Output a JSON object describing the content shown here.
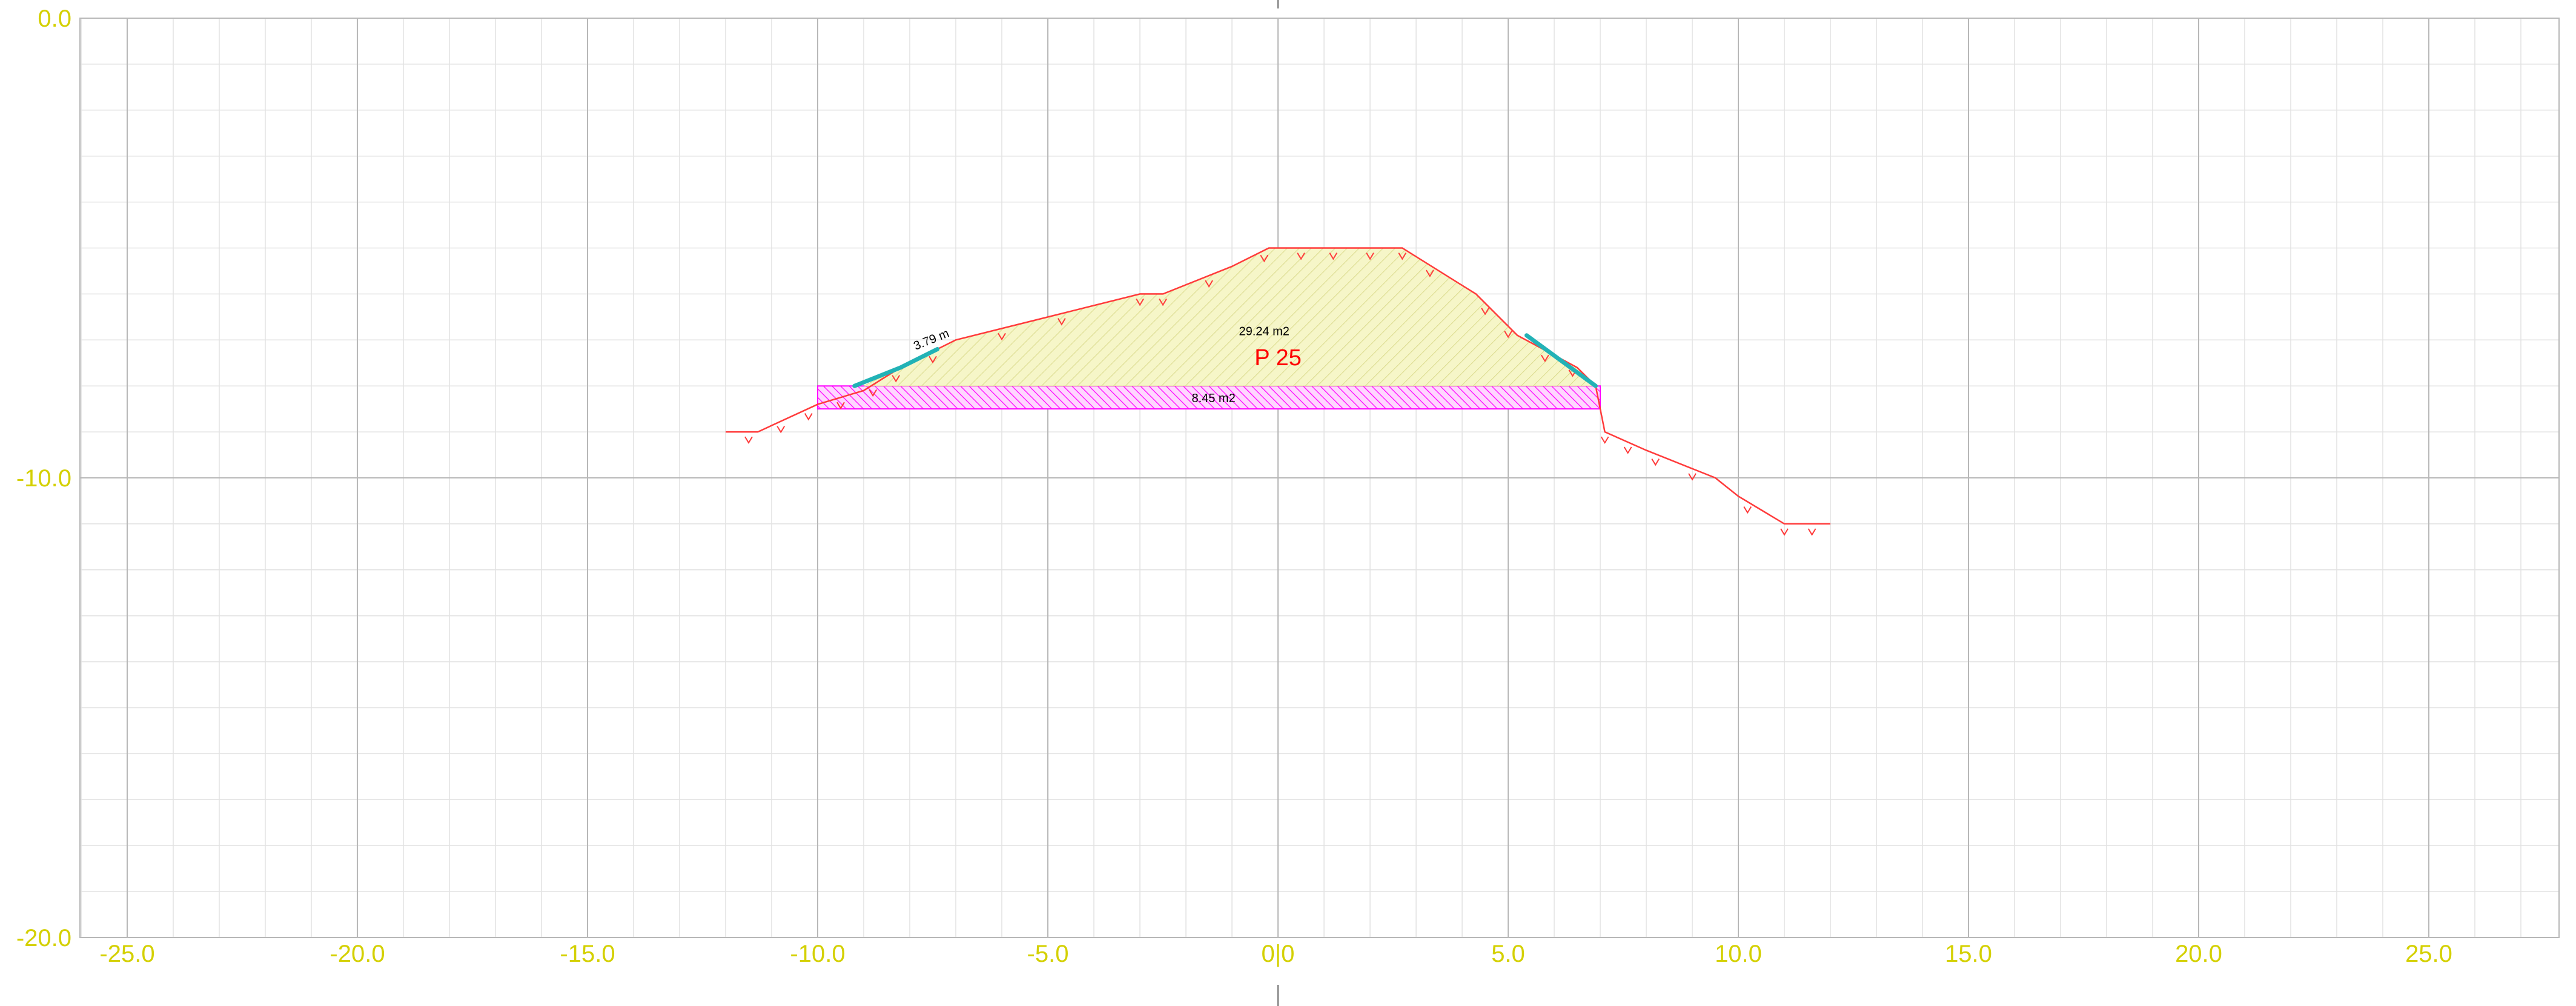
{
  "colors": {
    "background": "#ffffff",
    "grid_minor": "#e2e2e2",
    "grid_major": "#b8b8b8",
    "axis_labels": "#d4d000",
    "terrain_line": "#ff3b3b",
    "fill_area": "#f6f6c8",
    "fill_hatch": "#d9d98a",
    "cut_area": "#ff00ff",
    "slope_highlight": "#22b2b6",
    "profile_label": "#ff0000",
    "annotation_text": "#000000"
  },
  "chart_data": {
    "type": "cross-section",
    "x_axis": {
      "range": [
        -26.0,
        28.0
      ],
      "ticks": [
        -25.0,
        -20.0,
        -15.0,
        -10.0,
        -5.0,
        0.0,
        5.0,
        10.0,
        15.0,
        20.0,
        25.0
      ],
      "tick_labels": [
        "-25.0",
        "-20.0",
        "-15.0",
        "-10.0",
        "-5.0",
        "0|0",
        "5.0",
        "10.0",
        "15.0",
        "20.0",
        "25.0"
      ],
      "minor_step": 1.0
    },
    "y_axis": {
      "range": [
        -20.0,
        0.0
      ],
      "ticks": [
        0.0,
        -10.0,
        -20.0
      ],
      "tick_labels": [
        "0.0",
        "-10.0",
        "-20.0"
      ],
      "minor_step": 1.0
    },
    "grid": true,
    "terrain_profile": [
      [
        -12.0,
        -9.0
      ],
      [
        -11.3,
        -9.0
      ],
      [
        -10.0,
        -8.4
      ],
      [
        -9.0,
        -8.1
      ],
      [
        -8.2,
        -7.6
      ],
      [
        -7.0,
        -7.0
      ],
      [
        -5.0,
        -6.5
      ],
      [
        -3.0,
        -6.0
      ],
      [
        -2.5,
        -6.0
      ],
      [
        -1.0,
        -5.4
      ],
      [
        -0.2,
        -5.0
      ],
      [
        2.7,
        -5.0
      ],
      [
        4.3,
        -6.0
      ],
      [
        5.2,
        -6.9
      ],
      [
        6.5,
        -7.6
      ],
      [
        6.9,
        -8.0
      ],
      [
        7.1,
        -9.0
      ],
      [
        8.0,
        -9.4
      ],
      [
        9.5,
        -10.0
      ],
      [
        10.0,
        -10.4
      ],
      [
        11.0,
        -11.0
      ],
      [
        12.0,
        -11.0
      ]
    ],
    "fill_polygon": [
      [
        -9.0,
        -8.0
      ],
      [
        -8.2,
        -7.6
      ],
      [
        -7.0,
        -7.0
      ],
      [
        -5.0,
        -6.5
      ],
      [
        -3.0,
        -6.0
      ],
      [
        -2.5,
        -6.0
      ],
      [
        -1.0,
        -5.4
      ],
      [
        -0.2,
        -5.0
      ],
      [
        2.7,
        -5.0
      ],
      [
        4.3,
        -6.0
      ],
      [
        5.2,
        -6.9
      ],
      [
        6.5,
        -7.6
      ],
      [
        6.9,
        -8.0
      ]
    ],
    "cut_polygon": [
      [
        -10.0,
        -8.0
      ],
      [
        7.0,
        -8.0
      ],
      [
        7.0,
        -8.5
      ],
      [
        -10.0,
        -8.5
      ]
    ],
    "slope_highlights": [
      [
        [
          -9.2,
          -8.0
        ],
        [
          -8.2,
          -7.6
        ],
        [
          -7.4,
          -7.2
        ]
      ],
      [
        [
          5.4,
          -6.9
        ],
        [
          6.9,
          -8.0
        ]
      ]
    ],
    "tick_marks_x": [
      -11.5,
      -10.8,
      -10.2,
      -9.5,
      -8.8,
      -8.3,
      -7.5,
      -6.0,
      -4.7,
      -3.0,
      -2.5,
      -1.5,
      -0.3,
      0.5,
      1.2,
      2.0,
      2.7,
      3.3,
      4.5,
      5.0,
      5.8,
      6.4,
      7.1,
      7.6,
      8.2,
      9.0,
      10.2,
      11.0,
      11.6
    ],
    "annotations": {
      "profile_label": "P 25",
      "fill_area_label": "29.24 m2",
      "cut_area_label": "8.45 m2",
      "slope_length_label": "3.79 m"
    }
  }
}
